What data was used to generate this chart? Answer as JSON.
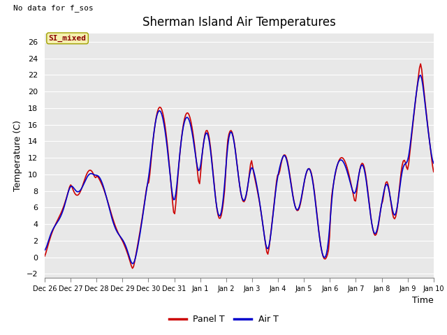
{
  "title": "Sherman Island Air Temperatures",
  "xlabel": "Time",
  "ylabel": "Temperature (C)",
  "ylim": [
    -2.5,
    27
  ],
  "yticks": [
    -2,
    0,
    2,
    4,
    6,
    8,
    10,
    12,
    14,
    16,
    18,
    20,
    22,
    24,
    26
  ],
  "xtick_labels": [
    "Dec 26",
    "Dec 27",
    "Dec 28",
    "Dec 29",
    "Dec 30",
    "Dec 31",
    "Jan 1",
    "Jan 2",
    "Jan 3",
    "Jan 4",
    "Jan 5",
    "Jan 6",
    "Jan 7",
    "Jan 8",
    "Jan 9",
    "Jan 10"
  ],
  "no_data_text": "No data for f_sos",
  "legend_label1": "Panel T",
  "legend_label2": "Air T",
  "legend_color1": "#cc0000",
  "legend_color2": "#0000cc",
  "si_mixed_label": "SI_mixed",
  "plot_bg_color": "#e8e8e8",
  "fig_bg_color": "#ffffff",
  "title_fontsize": 12,
  "axis_label_fontsize": 9,
  "tick_fontsize": 8,
  "no_data_fontsize": 8,
  "si_mixed_fontsize": 8,
  "legend_fontsize": 9,
  "line_width": 1.2
}
